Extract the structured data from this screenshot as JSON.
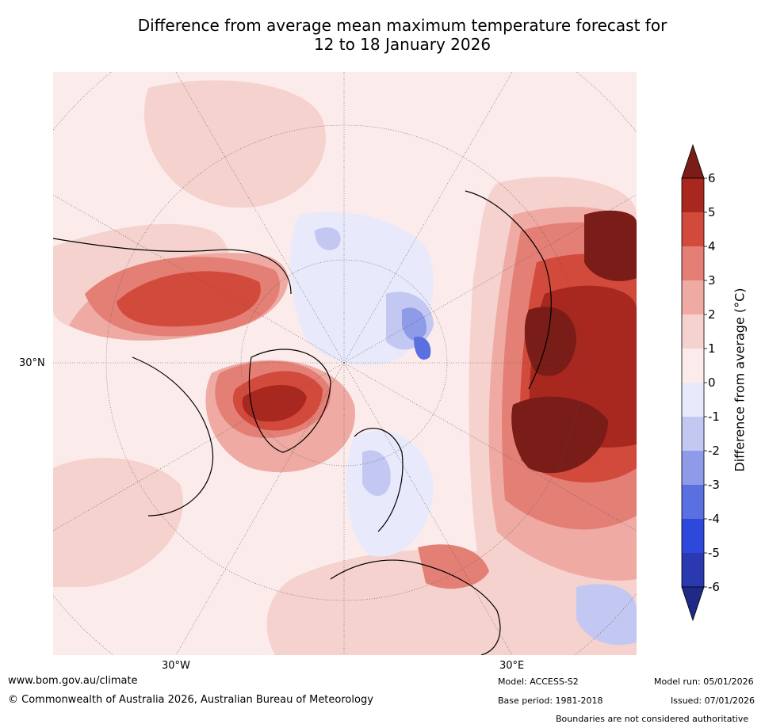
{
  "title": {
    "line1": "Difference from average mean maximum temperature forecast for",
    "line2": "12 to 18 January 2026"
  },
  "map": {
    "projection": "north-polar-stereographic",
    "lat_label_left": "30°N",
    "lon_label_left": "30°W",
    "lon_label_right": "30°E"
  },
  "colorbar": {
    "label": "Difference from average (°C)",
    "ticks": [
      "6",
      "5",
      "4",
      "3",
      "2",
      "1",
      "0",
      "-1",
      "-2",
      "-3",
      "-4",
      "-5",
      "-6"
    ],
    "colors": {
      "above_6": "#7a1c17",
      "5_6": "#a8271f",
      "4_5": "#d24a3c",
      "3_4": "#e47f75",
      "2_3": "#efaaa3",
      "1_2": "#f5d2cd",
      "0_1": "#fbeceb",
      "m1_0": "#e8eafb",
      "m2_m1": "#c2c8f2",
      "m3_m2": "#8d9be9",
      "m4_m3": "#5a6fe0",
      "m5_m4": "#2f48dc",
      "m6_m5": "#2a39b0",
      "below_m6": "#1f2a87"
    }
  },
  "footer": {
    "website": "www.bom.gov.au/climate",
    "copyright": "© Commonwealth of Australia 2026, Australian Bureau of Meteorology",
    "model": "Model: ACCESS-S2",
    "base_period": "Base period: 1981-2018",
    "model_run": "Model run: 05/01/2026",
    "issued": "Issued: 07/01/2026",
    "disclaimer": "Boundaries are not considered authoritative"
  }
}
